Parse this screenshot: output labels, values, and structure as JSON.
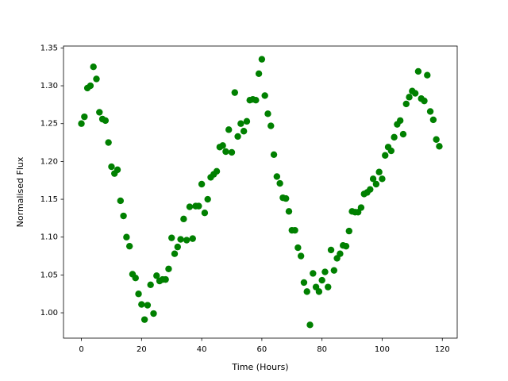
{
  "chart_data": {
    "type": "scatter",
    "xlabel": "Time (Hours)",
    "ylabel": "Normalised Flux",
    "x": [
      0,
      1,
      2,
      3,
      4,
      5,
      6,
      7,
      8,
      9,
      10,
      11,
      12,
      13,
      14,
      15,
      16,
      17,
      18,
      19,
      20,
      21,
      22,
      23,
      24,
      25,
      26,
      27,
      28,
      29,
      30,
      31,
      32,
      33,
      34,
      35,
      36,
      37,
      38,
      39,
      40,
      41,
      42,
      43,
      44,
      45,
      46,
      47,
      48,
      49,
      50,
      51,
      52,
      53,
      54,
      55,
      56,
      57,
      58,
      59,
      60,
      61,
      62,
      63,
      64,
      65,
      66,
      67,
      68,
      69,
      70,
      71,
      72,
      73,
      74,
      75,
      76,
      77,
      78,
      79,
      80,
      81,
      82,
      83,
      84,
      85,
      86,
      87,
      88,
      89,
      90,
      91,
      92,
      93,
      94,
      95,
      96,
      97,
      98,
      99,
      100,
      101,
      102,
      103,
      104,
      105,
      106,
      107,
      108,
      109,
      110,
      111,
      112,
      113,
      114,
      115,
      116,
      117,
      118,
      119
    ],
    "series": [
      {
        "color": "#008000",
        "values": [
          1.25,
          1.259,
          1.297,
          1.3,
          1.325,
          1.309,
          1.265,
          1.256,
          1.254,
          1.225,
          1.193,
          1.184,
          1.189,
          1.148,
          1.128,
          1.1,
          1.088,
          1.051,
          1.046,
          1.025,
          1.011,
          0.991,
          1.01,
          1.037,
          0.999,
          1.049,
          1.042,
          1.044,
          1.044,
          1.058,
          1.099,
          1.078,
          1.087,
          1.097,
          1.124,
          1.096,
          1.14,
          1.098,
          1.141,
          1.141,
          1.17,
          1.132,
          1.15,
          1.179,
          1.183,
          1.187,
          1.219,
          1.221,
          1.213,
          1.242,
          1.212,
          1.291,
          1.233,
          1.25,
          1.24,
          1.253,
          1.281,
          1.282,
          1.281,
          1.316,
          1.335,
          1.287,
          1.263,
          1.247,
          1.209,
          1.18,
          1.171,
          1.152,
          1.151,
          1.134,
          1.109,
          1.109,
          1.086,
          1.075,
          1.04,
          1.028,
          0.984,
          1.052,
          1.034,
          1.028,
          1.043,
          1.054,
          1.034,
          1.083,
          1.056,
          1.072,
          1.078,
          1.089,
          1.088,
          1.108,
          1.134,
          1.133,
          1.133,
          1.139,
          1.157,
          1.159,
          1.163,
          1.177,
          1.17,
          1.186,
          1.177,
          1.208,
          1.219,
          1.214,
          1.232,
          1.249,
          1.254,
          1.236,
          1.276,
          1.285,
          1.293,
          1.29,
          1.319,
          1.283,
          1.28,
          1.314,
          1.266,
          1.255,
          1.229,
          1.22
        ]
      }
    ],
    "xlim": [
      -5.95,
      124.95
    ],
    "xticks": [
      0,
      20,
      40,
      60,
      80,
      100,
      120
    ],
    "ylim": [
      0.9665,
      1.3525
    ],
    "yticks": [
      {
        "value": 1.0,
        "label": "1.00"
      },
      1.05,
      {
        "value": 1.1,
        "label": "1.10"
      },
      1.15,
      {
        "value": 1.2,
        "label": "1.20"
      },
      1.25,
      {
        "value": 1.3,
        "label": "1.30"
      },
      1.35
    ],
    "grid": false
  }
}
